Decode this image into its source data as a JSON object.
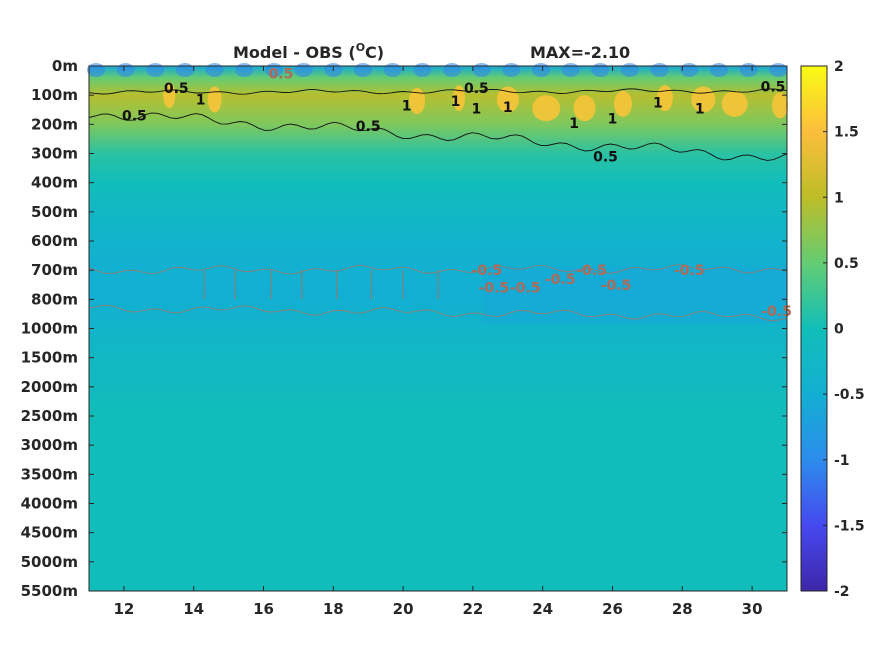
{
  "chart_data": {
    "type": "heatmap",
    "title": "Model - OBS (",
    "title_sup": "O",
    "title_unit": "C)",
    "max_label": "MAX=-2.10",
    "colormap": "parula",
    "x": {
      "range": [
        11,
        31
      ],
      "ticks": [
        12,
        14,
        16,
        18,
        20,
        22,
        24,
        26,
        28,
        30
      ],
      "tick_labels": [
        "12",
        "14",
        "16",
        "18",
        "20",
        "22",
        "24",
        "26",
        "28",
        "30"
      ]
    },
    "y": {
      "reversed": true,
      "tick_labels": [
        "0m",
        "100m",
        "200m",
        "300m",
        "400m",
        "500m",
        "600m",
        "700m",
        "800m",
        "1000m",
        "1500m",
        "2000m",
        "2500m",
        "3000m",
        "3500m",
        "4000m",
        "4500m",
        "5000m",
        "5500m"
      ]
    },
    "colorbar": {
      "clim": [
        -2,
        2
      ],
      "ticks": [
        2,
        1.5,
        1,
        0.5,
        0,
        -0.5,
        -1,
        -1.5,
        -2
      ],
      "tick_labels": [
        "2",
        "1.5",
        "1",
        "0.5",
        "0",
        "-0.5",
        "-1",
        "-1.5",
        "-2"
      ]
    },
    "depth_profile": [
      {
        "depth_index": 0,
        "value": -0.6
      },
      {
        "depth_index": 0.4,
        "value": 0.5
      },
      {
        "depth_index": 1,
        "value": 0.95
      },
      {
        "depth_index": 2,
        "value": 0.65
      },
      {
        "depth_index": 3,
        "value": 0.15
      },
      {
        "depth_index": 4,
        "value": -0.05
      },
      {
        "depth_index": 5,
        "value": -0.22
      },
      {
        "depth_index": 6,
        "value": -0.38
      },
      {
        "depth_index": 7,
        "value": -0.48
      },
      {
        "depth_index": 8,
        "value": -0.5
      },
      {
        "depth_index": 9,
        "value": -0.35
      },
      {
        "depth_index": 10,
        "value": -0.2
      },
      {
        "depth_index": 11,
        "value": -0.15
      },
      {
        "depth_index": 12,
        "value": -0.05
      },
      {
        "depth_index": 18,
        "value": -0.05
      }
    ],
    "contour_labels": [
      {
        "text": "0.5",
        "x": 13.5,
        "depth_index": 0.75,
        "color": "black"
      },
      {
        "text": "1",
        "x": 14.2,
        "depth_index": 1.15,
        "color": "black"
      },
      {
        "text": "0.5",
        "x": 12.3,
        "depth_index": 1.7,
        "color": "black"
      },
      {
        "text": "0.5",
        "x": 16.5,
        "depth_index": 0.25,
        "color": "brown"
      },
      {
        "text": "0.5",
        "x": 19.0,
        "depth_index": 2.05,
        "color": "black"
      },
      {
        "text": "1",
        "x": 20.1,
        "depth_index": 1.35,
        "color": "black"
      },
      {
        "text": "0.5",
        "x": 22.1,
        "depth_index": 0.75,
        "color": "black"
      },
      {
        "text": "1",
        "x": 21.5,
        "depth_index": 1.2,
        "color": "black"
      },
      {
        "text": "1",
        "x": 22.1,
        "depth_index": 1.45,
        "color": "black"
      },
      {
        "text": "1",
        "x": 23.0,
        "depth_index": 1.4,
        "color": "black"
      },
      {
        "text": "1",
        "x": 24.9,
        "depth_index": 1.95,
        "color": "black"
      },
      {
        "text": "1",
        "x": 26.0,
        "depth_index": 1.8,
        "color": "black"
      },
      {
        "text": "0.5",
        "x": 25.8,
        "depth_index": 3.1,
        "color": "black"
      },
      {
        "text": "1",
        "x": 27.3,
        "depth_index": 1.25,
        "color": "black"
      },
      {
        "text": "1",
        "x": 28.5,
        "depth_index": 1.45,
        "color": "black"
      },
      {
        "text": "0.5",
        "x": 30.6,
        "depth_index": 0.7,
        "color": "black"
      },
      {
        "text": "-0.5",
        "x": 22.4,
        "depth_index": 7.0,
        "color": "brown"
      },
      {
        "text": "-0.5",
        "x": 22.6,
        "depth_index": 7.6,
        "color": "brown"
      },
      {
        "text": "-0.5",
        "x": 23.5,
        "depth_index": 7.6,
        "color": "brown"
      },
      {
        "text": "-0.5",
        "x": 24.5,
        "depth_index": 7.3,
        "color": "brown"
      },
      {
        "text": "-0.5",
        "x": 25.4,
        "depth_index": 7.0,
        "color": "brown"
      },
      {
        "text": "-0.5",
        "x": 26.1,
        "depth_index": 7.5,
        "color": "brown"
      },
      {
        "text": "-0.5",
        "x": 28.2,
        "depth_index": 7.0,
        "color": "brown"
      },
      {
        "text": "-0.5",
        "x": 30.7,
        "depth_index": 8.4,
        "color": "brown"
      }
    ],
    "grid": false,
    "legend": "colorbar-right"
  }
}
